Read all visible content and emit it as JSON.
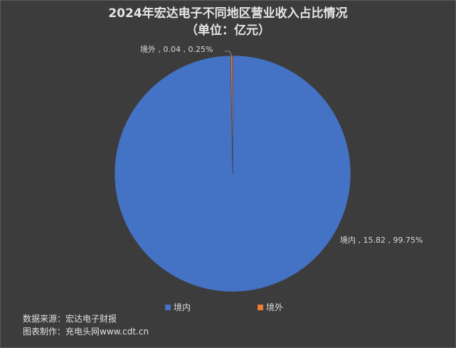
{
  "chart_data": {
    "type": "pie",
    "title": "2024年宏达电子不同地区营业收入占比情况",
    "subtitle": "（单位：亿元）",
    "unit": "亿元",
    "slices": [
      {
        "label": "境内",
        "value": 15.82,
        "percent": "99.75%",
        "color": "#4472c4",
        "data_label": "境内 , 15.82 , 99.75%"
      },
      {
        "label": "境外",
        "value": 0.04,
        "percent": "0.25%",
        "color": "#ed7d31",
        "data_label": "境外 , 0.04 , 0.25%"
      }
    ],
    "legend": {
      "placement": "bottom",
      "items": [
        "境内",
        "境外"
      ]
    }
  },
  "footer": {
    "source": "数据来源：宏达电子财报",
    "maker": "图表制作：充电头网www.cdt.cn"
  },
  "colors": {
    "background": "#3c3c3c",
    "text": "#d9d9d9"
  }
}
